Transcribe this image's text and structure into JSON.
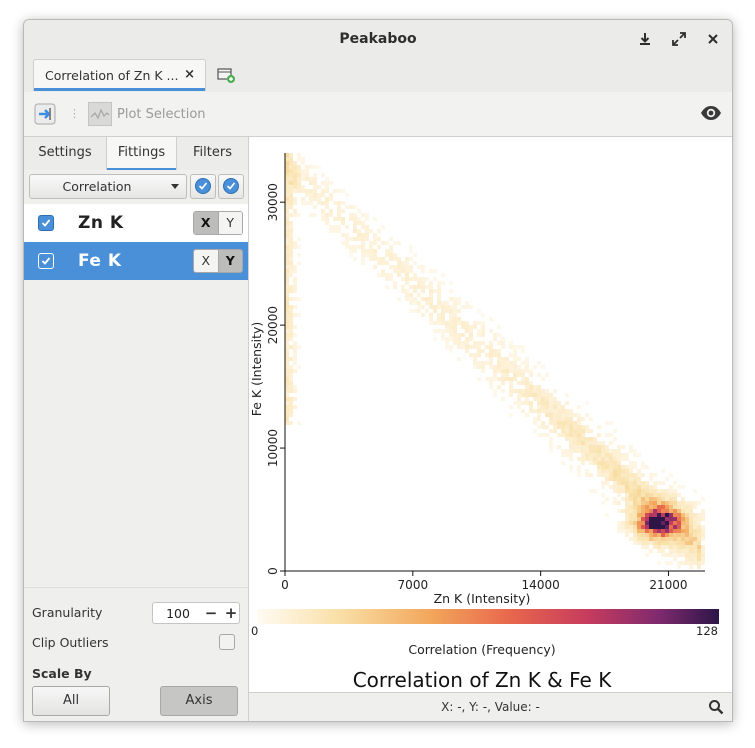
{
  "window": {
    "title": "Peakaboo"
  },
  "tabs": [
    {
      "label": "Correlation of Zn K ...",
      "close": "×"
    }
  ],
  "toolbar": {
    "plot_selection_label": "Plot Selection"
  },
  "sidebar": {
    "tabs": [
      "Settings",
      "Fittings",
      "Filters"
    ],
    "active_tab": "Fittings",
    "mode": "Correlation",
    "fittings": [
      {
        "name": "Zn K",
        "checked": true,
        "x": "X",
        "y": "Y",
        "axis": "X",
        "selected": false
      },
      {
        "name": "Fe K",
        "checked": true,
        "x": "X",
        "y": "Y",
        "axis": "Y",
        "selected": true
      }
    ],
    "granularity": {
      "label": "Granularity",
      "value": "100",
      "minus": "−",
      "plus": "+"
    },
    "clip_outliers": {
      "label": "Clip Outliers",
      "checked": false
    },
    "scale_by": {
      "label": "Scale By",
      "options": [
        "All",
        "Axis"
      ],
      "selected": "Axis"
    }
  },
  "status": {
    "text": "X: -, Y: -, Value: -"
  },
  "colors": {
    "accent": "#4a90d9",
    "selection": "#4a90d9"
  },
  "chart_data": {
    "type": "heatmap",
    "title": "Correlation of Zn K & Fe K",
    "xlabel": "Zn K (Intensity)",
    "ylabel": "Fe K (Intensity)",
    "xticks": [
      "0",
      "7000",
      "14000",
      "21000"
    ],
    "yticks": [
      "0",
      "10000",
      "20000",
      "30000"
    ],
    "xlim": [
      0,
      23000
    ],
    "ylim": [
      0,
      34000
    ],
    "colorbar": {
      "label": "Correlation (Frequency)",
      "min": "0",
      "max": "128",
      "colormap": "inferno-reversed"
    },
    "hotspot": {
      "x": 20500,
      "y": 4000,
      "value": 128
    },
    "distribution": "anti-correlated band from (300, 33000) to (22500, 2000); densest near Zn K ≈ 20500, Fe K ≈ 4000"
  }
}
